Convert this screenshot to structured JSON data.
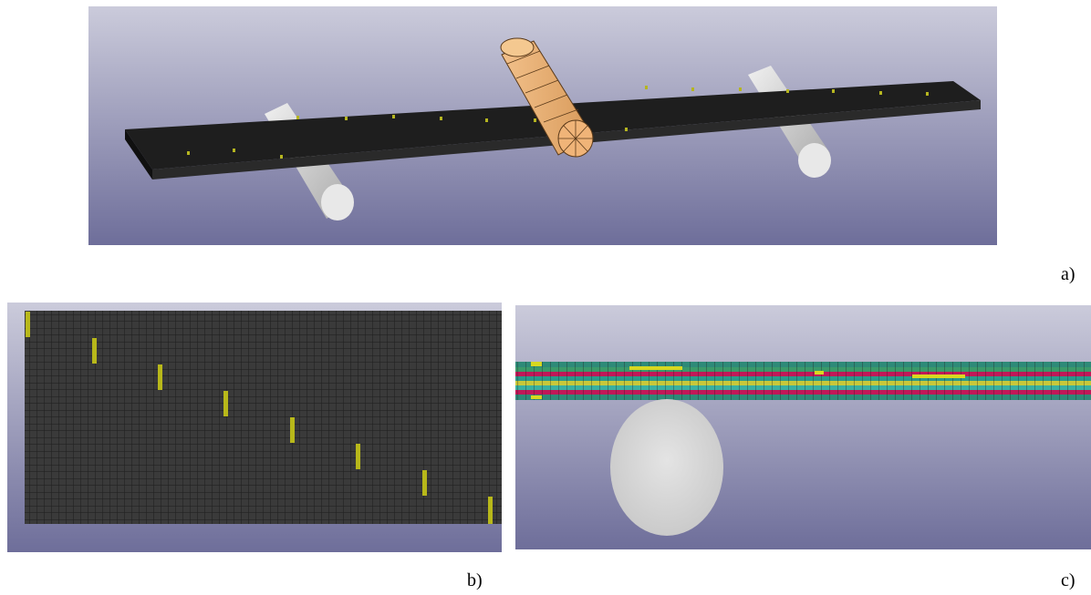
{
  "labels": {
    "a": "a)",
    "b": "b)",
    "c": "c)"
  }
}
